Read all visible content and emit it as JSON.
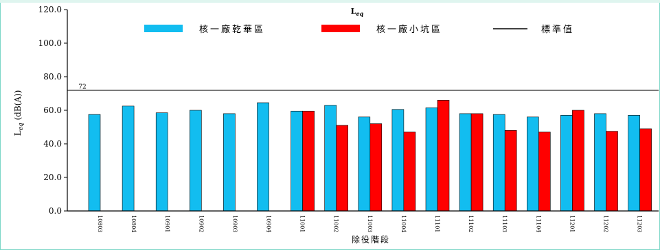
{
  "chart_data": {
    "type": "bar",
    "title": "Leq",
    "title_main": "L",
    "title_sub": "eq",
    "ylabel": "Leq (dB(A))",
    "ylabel_main": "L",
    "ylabel_sub": "eq",
    "ylabel_unit": " (dB(A))",
    "xlabel": "除役階段",
    "ylim": [
      0,
      120
    ],
    "yticks": [
      "0.0",
      "20.0",
      "40.0",
      "60.0",
      "80.0",
      "100.0",
      "120.0"
    ],
    "ytick_values": [
      0,
      20,
      40,
      60,
      80,
      100,
      120
    ],
    "categories": [
      "10803",
      "10804",
      "10901",
      "10902",
      "10903",
      "10904",
      "11001",
      "11002",
      "11003",
      "11004",
      "11101",
      "11102",
      "11103",
      "11104",
      "11201",
      "11202",
      "11203"
    ],
    "series": [
      {
        "name": "核一廠乾華區",
        "color": "#12bdf0",
        "values": [
          57.5,
          62.5,
          58.5,
          60.0,
          58.0,
          64.5,
          59.5,
          63.0,
          56.0,
          60.5,
          61.5,
          58.0,
          57.5,
          56.0,
          57.0,
          58.0,
          57.0
        ]
      },
      {
        "name": "核一廠小坑區",
        "color": "#ff0000",
        "values": [
          null,
          null,
          null,
          null,
          null,
          null,
          59.5,
          51.0,
          52.0,
          47.0,
          66.0,
          58.0,
          48.0,
          47.0,
          60.0,
          47.5,
          49.0
        ]
      }
    ],
    "reference_line": {
      "name": "標準值",
      "value": 72,
      "label": "72",
      "color": "#000000"
    },
    "legend_position": "top",
    "grid": false
  }
}
